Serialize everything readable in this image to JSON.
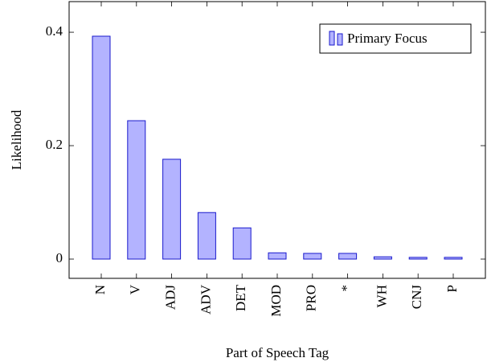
{
  "chart_data": {
    "type": "bar",
    "categories": [
      "N",
      "V",
      "ADJ",
      "ADV",
      "DET",
      "MOD",
      "PRO",
      "*",
      "WH",
      "CNJ",
      "P"
    ],
    "series": [
      {
        "name": "Primary Focus",
        "color": "#b3b3ff",
        "stroke": "#1a1acc",
        "values": [
          0.393,
          0.244,
          0.176,
          0.082,
          0.055,
          0.011,
          0.01,
          0.01,
          0.004,
          0.003,
          0.003
        ]
      }
    ],
    "xlabel": "Part of Speech Tag",
    "ylabel": "Likelihood",
    "ylim": [
      -0.034,
      0.454
    ],
    "yticks": [
      0,
      0.2,
      0.4
    ],
    "legend": "top-right"
  }
}
